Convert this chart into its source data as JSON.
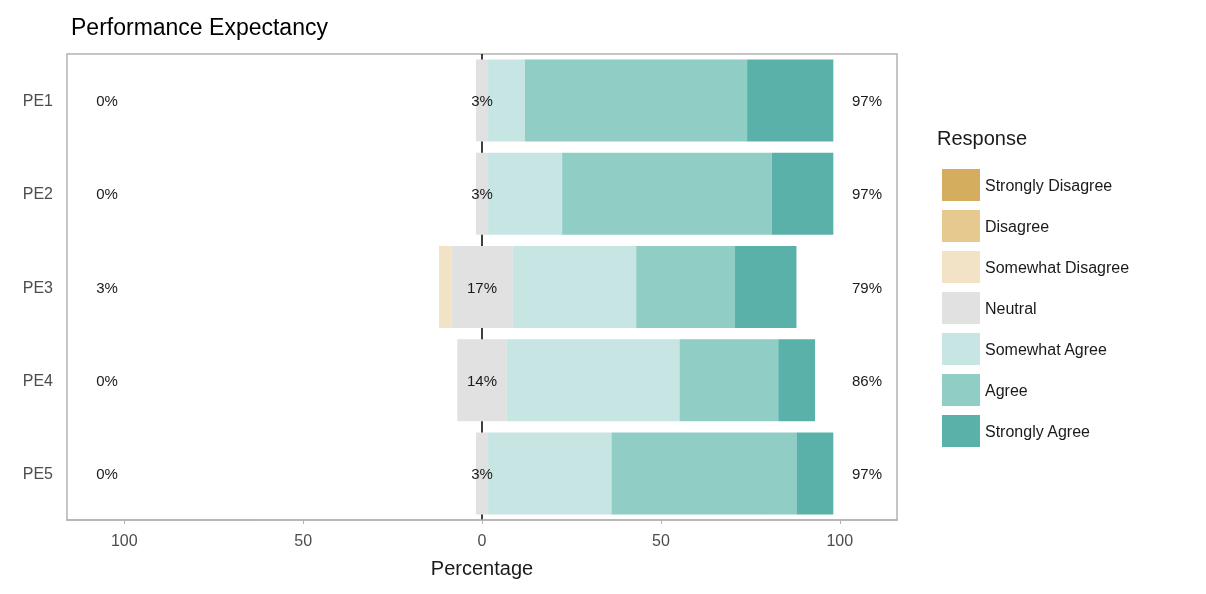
{
  "chart_data": {
    "type": "bar",
    "orientation": "horizontal",
    "title": "Performance Expectancy",
    "xlabel": "Percentage",
    "legend_title": "Response",
    "legend": "right",
    "categories": [
      "PE1",
      "PE2",
      "PE3",
      "PE4",
      "PE5"
    ],
    "series": [
      {
        "name": "Strongly Disagree",
        "color": "#d4ad5e",
        "values": [
          0,
          0,
          0,
          0,
          0
        ]
      },
      {
        "name": "Disagree",
        "color": "#e6c98f",
        "values": [
          0,
          0,
          0,
          0,
          0
        ]
      },
      {
        "name": "Somewhat Disagree",
        "color": "#f2e2c6",
        "base": [
          null,
          null,
          -12.0,
          null,
          null
        ],
        "values": [
          0,
          0,
          3.4,
          0,
          0
        ]
      },
      {
        "name": "Neutral",
        "color": "#e1e1e1",
        "base": [
          -1.7,
          -1.7,
          -8.6,
          -6.9,
          -1.7
        ],
        "values": [
          3.4,
          3.4,
          17.2,
          13.8,
          3.4
        ],
        "value_labels": [
          "3%",
          "3%",
          "17%",
          "14%",
          "3%"
        ]
      },
      {
        "name": "Somewhat Agree",
        "color": "#c7e5e3",
        "base": [
          1.7,
          1.7,
          8.6,
          6.9,
          1.7
        ],
        "values": [
          10.3,
          20.7,
          34.5,
          48.3,
          34.5
        ]
      },
      {
        "name": "Agree",
        "color": "#90cdc4",
        "base": [
          12.0,
          22.4,
          43.1,
          55.2,
          36.2
        ],
        "values": [
          62.1,
          58.6,
          27.6,
          27.6,
          51.7
        ]
      },
      {
        "name": "Strongly Agree",
        "color": "#5ab1a9",
        "base": [
          74.1,
          81.0,
          70.7,
          82.8,
          87.9
        ],
        "values": [
          24.1,
          17.2,
          17.2,
          10.3,
          10.3
        ]
      }
    ],
    "xlim": [
      -116,
      116
    ],
    "xticks": [
      {
        "value": -100,
        "label": "100"
      },
      {
        "value": -50,
        "label": "50"
      },
      0,
      50,
      100
    ],
    "ref_lines": [
      {
        "axis": "x",
        "value": 0,
        "color": "#000000",
        "line_style": "solid"
      }
    ],
    "annotations": [
      "0%",
      "0%",
      "3%",
      "0%",
      "0%",
      "97%",
      "97%",
      "79%",
      "86%",
      "97%"
    ]
  }
}
